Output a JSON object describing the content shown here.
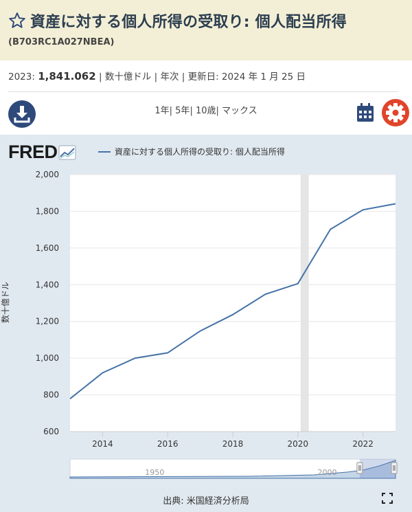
{
  "header": {
    "title": "資産に対する個人所得の受取り: 個人配当所得",
    "series_id": "(B703RC1A027NBEA)"
  },
  "meta": {
    "year_label": "2023:",
    "value": "1,841.062",
    "units": "数十億ドル",
    "frequency": "年次",
    "updated": "更新日: 2024 年 1 月 25 日",
    "sep": " | "
  },
  "toolbar": {
    "ranges": [
      "1年",
      "5年",
      "10歳",
      "マックス"
    ]
  },
  "legend": {
    "label": "資産に対する個人所得の受取り: 個人配当所得"
  },
  "colors": {
    "line": "#4572a7",
    "accent_blue": "#2e4a7a",
    "accent_red": "#e0452b",
    "panel": "#e1e9f0",
    "header_bg": "#f3efd6"
  },
  "chart_data": {
    "type": "line",
    "title": "資産に対する個人所得の受取り: 個人配当所得",
    "ylabel": "数十億ドル",
    "xlabel": "",
    "x": [
      2013,
      2014,
      2015,
      2016,
      2017,
      2018,
      2019,
      2020,
      2021,
      2022,
      2023
    ],
    "values": [
      779,
      920,
      1000,
      1029,
      1148,
      1237,
      1348,
      1406,
      1702,
      1808,
      1841.062
    ],
    "xlim": [
      2013,
      2023
    ],
    "ylim": [
      600,
      2000
    ],
    "yticks": [
      600,
      800,
      1000,
      1200,
      1400,
      1600,
      1800,
      2000
    ],
    "ytick_labels": [
      "600",
      "800",
      "1,000",
      "1,200",
      "1,400",
      "1,600",
      "1,800",
      "2,000"
    ],
    "xticks": [
      2014,
      2016,
      2018,
      2020,
      2022
    ],
    "xtick_labels": [
      "2014",
      "2016",
      "2018",
      "2020",
      "2022"
    ],
    "recession": [
      2020.0,
      2020.25
    ],
    "navigator": {
      "labels": [
        "1950",
        "2000"
      ]
    }
  },
  "footer": {
    "source": "出典: 米国経済分析局"
  }
}
